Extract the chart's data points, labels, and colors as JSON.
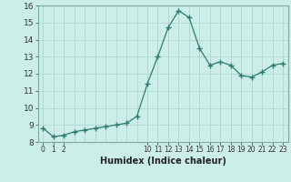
{
  "x": [
    0,
    1,
    2,
    3,
    4,
    5,
    6,
    7,
    8,
    9,
    10,
    11,
    12,
    13,
    14,
    15,
    16,
    17,
    18,
    19,
    20,
    21,
    22,
    23
  ],
  "y": [
    8.8,
    8.3,
    8.4,
    8.6,
    8.7,
    8.8,
    8.9,
    9.0,
    9.1,
    9.5,
    11.4,
    13.0,
    14.7,
    15.7,
    15.3,
    13.5,
    12.5,
    12.7,
    12.5,
    11.9,
    11.8,
    12.1,
    12.5,
    12.6
  ],
  "xlabel": "Humidex (Indice chaleur)",
  "ylim": [
    8,
    16
  ],
  "yticks": [
    8,
    9,
    10,
    11,
    12,
    13,
    14,
    15,
    16
  ],
  "xtick_positions": [
    0,
    1,
    2,
    10,
    11,
    12,
    13,
    14,
    15,
    16,
    17,
    18,
    19,
    20,
    21,
    22,
    23
  ],
  "xtick_labels": [
    "0",
    "1",
    "2",
    "10",
    "11",
    "12",
    "13",
    "14",
    "15",
    "16",
    "17",
    "18",
    "19",
    "20",
    "21",
    "22",
    "23"
  ],
  "line_color": "#2d7d6e",
  "marker_color": "#2d7d6e",
  "bg_color": "#cceee8",
  "grid_color": "#b0d8d0",
  "spine_color": "#7aaa9a"
}
